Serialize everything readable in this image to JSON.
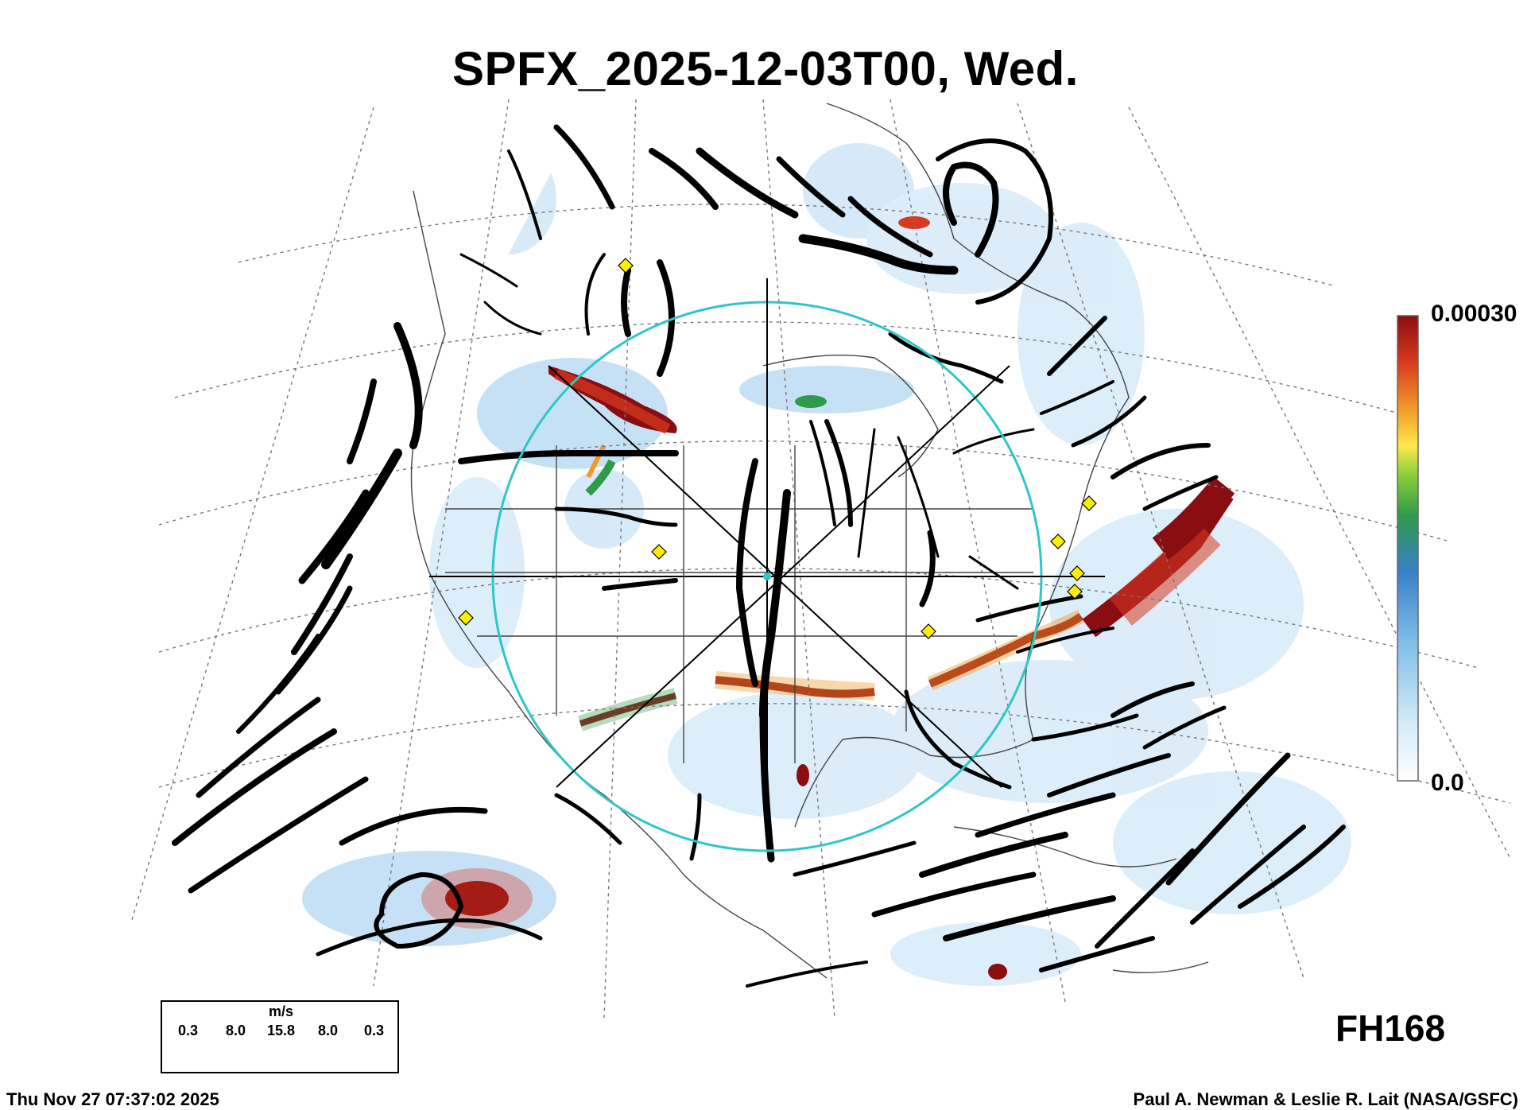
{
  "title": "SPFX_2025-12-03T00, Wed.",
  "colorbar": {
    "max_label": "0.00030",
    "min_label": "0.0",
    "colors": [
      "#ffffff",
      "#cfe6f7",
      "#7fbde8",
      "#3a7fc7",
      "#2e9a4a",
      "#ffe84a",
      "#f09a2b",
      "#d83a1f",
      "#8a0d12"
    ]
  },
  "forecast_hour": "FH168",
  "legend": {
    "unit": "m/s",
    "values": [
      "0.3",
      "8.0",
      "15.8",
      "8.0",
      "0.3"
    ]
  },
  "footer": {
    "timestamp": "Thu Nov 27 07:37:02 2025",
    "credit": "Paul A. Newman & Leslie R. Lait (NASA/GSFC)"
  },
  "markers": {
    "color": "#ffee00",
    "count": 8
  },
  "circle_color": "#2fc6c9"
}
